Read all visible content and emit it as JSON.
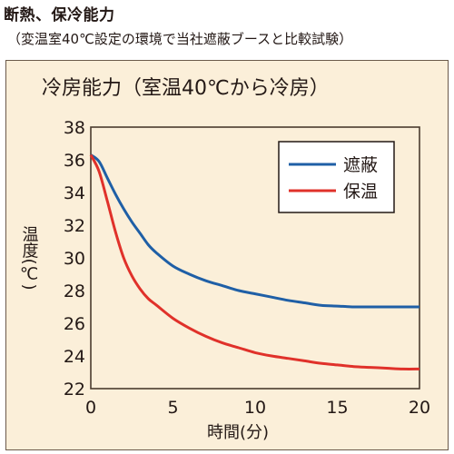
{
  "header": {
    "title": "断熱、保冷能力",
    "subtitle": "（変温室40℃設定の環境で当社遮蔽ブースと比較試験）"
  },
  "chart_data": {
    "type": "line",
    "title": "冷房能力（室温40℃から冷房）",
    "xlabel": "時間(分)",
    "ylabel": "温度(℃)",
    "xlim": [
      0,
      20
    ],
    "ylim": [
      22,
      38
    ],
    "xticks": [
      "0",
      "5",
      "10",
      "15",
      "20"
    ],
    "yticks": [
      "22",
      "24",
      "26",
      "28",
      "30",
      "32",
      "34",
      "36",
      "38"
    ],
    "grid": "horizontal",
    "legend_position": "top-right",
    "series": [
      {
        "name": "遮蔽",
        "color": "#1f5fa6",
        "x": [
          0,
          0.5,
          1,
          1.5,
          2,
          2.5,
          3,
          3.5,
          4,
          5,
          6,
          7,
          8,
          9,
          10,
          11,
          12,
          13,
          14,
          15,
          16,
          17,
          18,
          19,
          20
        ],
        "y": [
          36.3,
          35.9,
          34.9,
          33.9,
          33.0,
          32.2,
          31.5,
          30.8,
          30.3,
          29.5,
          29.0,
          28.6,
          28.3,
          28.0,
          27.8,
          27.6,
          27.4,
          27.25,
          27.1,
          27.05,
          27.0,
          27.0,
          27.0,
          27.0,
          27.0
        ]
      },
      {
        "name": "保温",
        "color": "#e0312a",
        "x": [
          0,
          0.5,
          1,
          1.5,
          2,
          2.5,
          3,
          3.5,
          4,
          5,
          6,
          7,
          8,
          9,
          10,
          11,
          12,
          13,
          14,
          15,
          16,
          17,
          18,
          19,
          20
        ],
        "y": [
          36.3,
          35.3,
          33.5,
          31.6,
          30.0,
          28.9,
          28.1,
          27.5,
          27.1,
          26.3,
          25.7,
          25.2,
          24.8,
          24.5,
          24.2,
          24.0,
          23.85,
          23.7,
          23.55,
          23.45,
          23.35,
          23.3,
          23.25,
          23.2,
          23.2
        ]
      }
    ]
  }
}
